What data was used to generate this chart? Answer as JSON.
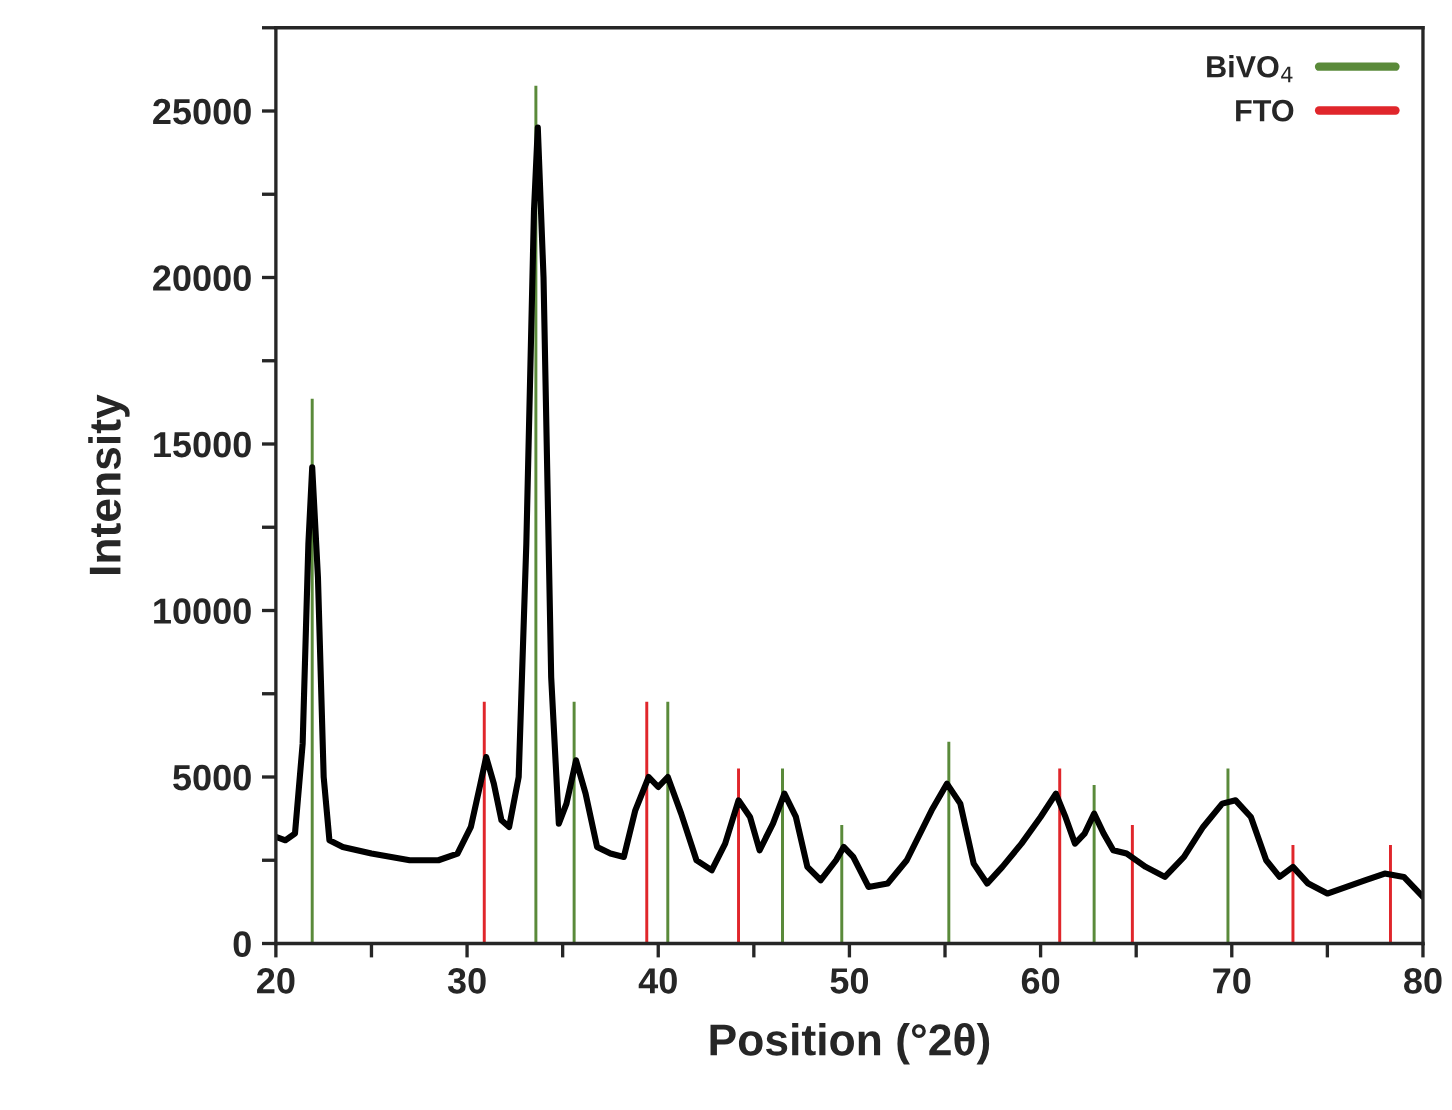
{
  "chart_data": {
    "type": "line",
    "xlabel": "Position (°2θ)",
    "ylabel": "Intensity",
    "xlim": [
      20,
      80
    ],
    "ylim": [
      0,
      27500
    ],
    "xticks": [
      20,
      {
        "value": 25,
        "label": null
      },
      30,
      {
        "value": 35,
        "label": null
      },
      40,
      {
        "value": 45,
        "label": null
      },
      50,
      {
        "value": 55,
        "label": null
      },
      60,
      {
        "value": 65,
        "label": null
      },
      70,
      {
        "value": 75,
        "label": null
      },
      80
    ],
    "yticks": [
      0,
      {
        "value": 2500,
        "label": null
      },
      5000,
      {
        "value": 7500,
        "label": null
      },
      10000,
      {
        "value": 12500,
        "label": null
      },
      15000,
      {
        "value": 17500,
        "label": null
      },
      20000,
      {
        "value": 22500,
        "label": null
      },
      25000,
      {
        "value": 27500,
        "label": null
      }
    ],
    "grid": false,
    "legend": "top right",
    "marker": "none",
    "line_style": "solid",
    "series": [
      {
        "color": "#000000",
        "x": [
          20,
          20.5,
          21,
          21.4,
          21.7,
          21.9,
          22.2,
          22.5,
          22.8,
          23.5,
          25,
          27,
          28.5,
          29.5,
          30.2,
          30.7,
          31,
          31.4,
          31.8,
          32.2,
          32.7,
          33.1,
          33.5,
          33.7,
          34.0,
          34.4,
          34.8,
          35.2,
          35.7,
          36.2,
          36.8,
          37.5,
          38.2,
          38.8,
          39.5,
          40.0,
          40.5,
          41.2,
          42,
          42.8,
          43.5,
          44.2,
          44.8,
          45.3,
          46.0,
          46.6,
          47.2,
          47.8,
          48.5,
          49.3,
          49.7,
          50.2,
          51,
          52,
          53,
          54.3,
          55.1,
          55.8,
          56.5,
          57.2,
          58,
          59,
          60,
          60.8,
          61.3,
          61.8,
          62.3,
          62.8,
          63.3,
          63.8,
          64.5,
          65.5,
          66.5,
          67.5,
          68.5,
          69.5,
          70.2,
          71,
          71.8,
          72.5,
          73.2,
          74,
          75,
          76,
          77,
          78,
          79,
          80
        ],
        "values": [
          3200,
          3100,
          3300,
          6000,
          12000,
          14300,
          11000,
          5000,
          3100,
          2900,
          2700,
          2500,
          2500,
          2700,
          3500,
          4800,
          5600,
          4800,
          3700,
          3500,
          5000,
          12000,
          22000,
          24500,
          20000,
          8000,
          3600,
          4200,
          5500,
          4500,
          2900,
          2700,
          2600,
          4000,
          5000,
          4700,
          5000,
          3900,
          2500,
          2200,
          3000,
          4300,
          3800,
          2800,
          3600,
          4500,
          3800,
          2300,
          1900,
          2500,
          2900,
          2600,
          1700,
          1800,
          2500,
          4000,
          4800,
          4200,
          2400,
          1800,
          2300,
          3000,
          3800,
          4500,
          3800,
          3000,
          3300,
          3900,
          3300,
          2800,
          2700,
          2300,
          2000,
          2600,
          3500,
          4200,
          4300,
          3800,
          2500,
          2000,
          2300,
          1800,
          1500,
          1700,
          1900,
          2100,
          2000,
          1400
        ]
      },
      {
        "type": "bar",
        "name": "BiVO$_{4}$",
        "color": "#5a8a3a",
        "x": [
          21.9,
          33.6,
          35.6,
          40.5,
          46.5,
          49.6,
          55.2,
          62.8,
          69.8
        ],
        "values": [
          16400,
          25800,
          7300,
          7300,
          5300,
          3600,
          6100,
          4800,
          5300
        ]
      },
      {
        "type": "bar",
        "name": "FTO",
        "color": "#e0262b",
        "x": [
          30.9,
          39.4,
          44.2,
          61.0,
          64.8,
          73.2,
          78.3
        ],
        "values": [
          7300,
          7300,
          5300,
          5300,
          3600,
          3000,
          3000
        ]
      }
    ]
  }
}
